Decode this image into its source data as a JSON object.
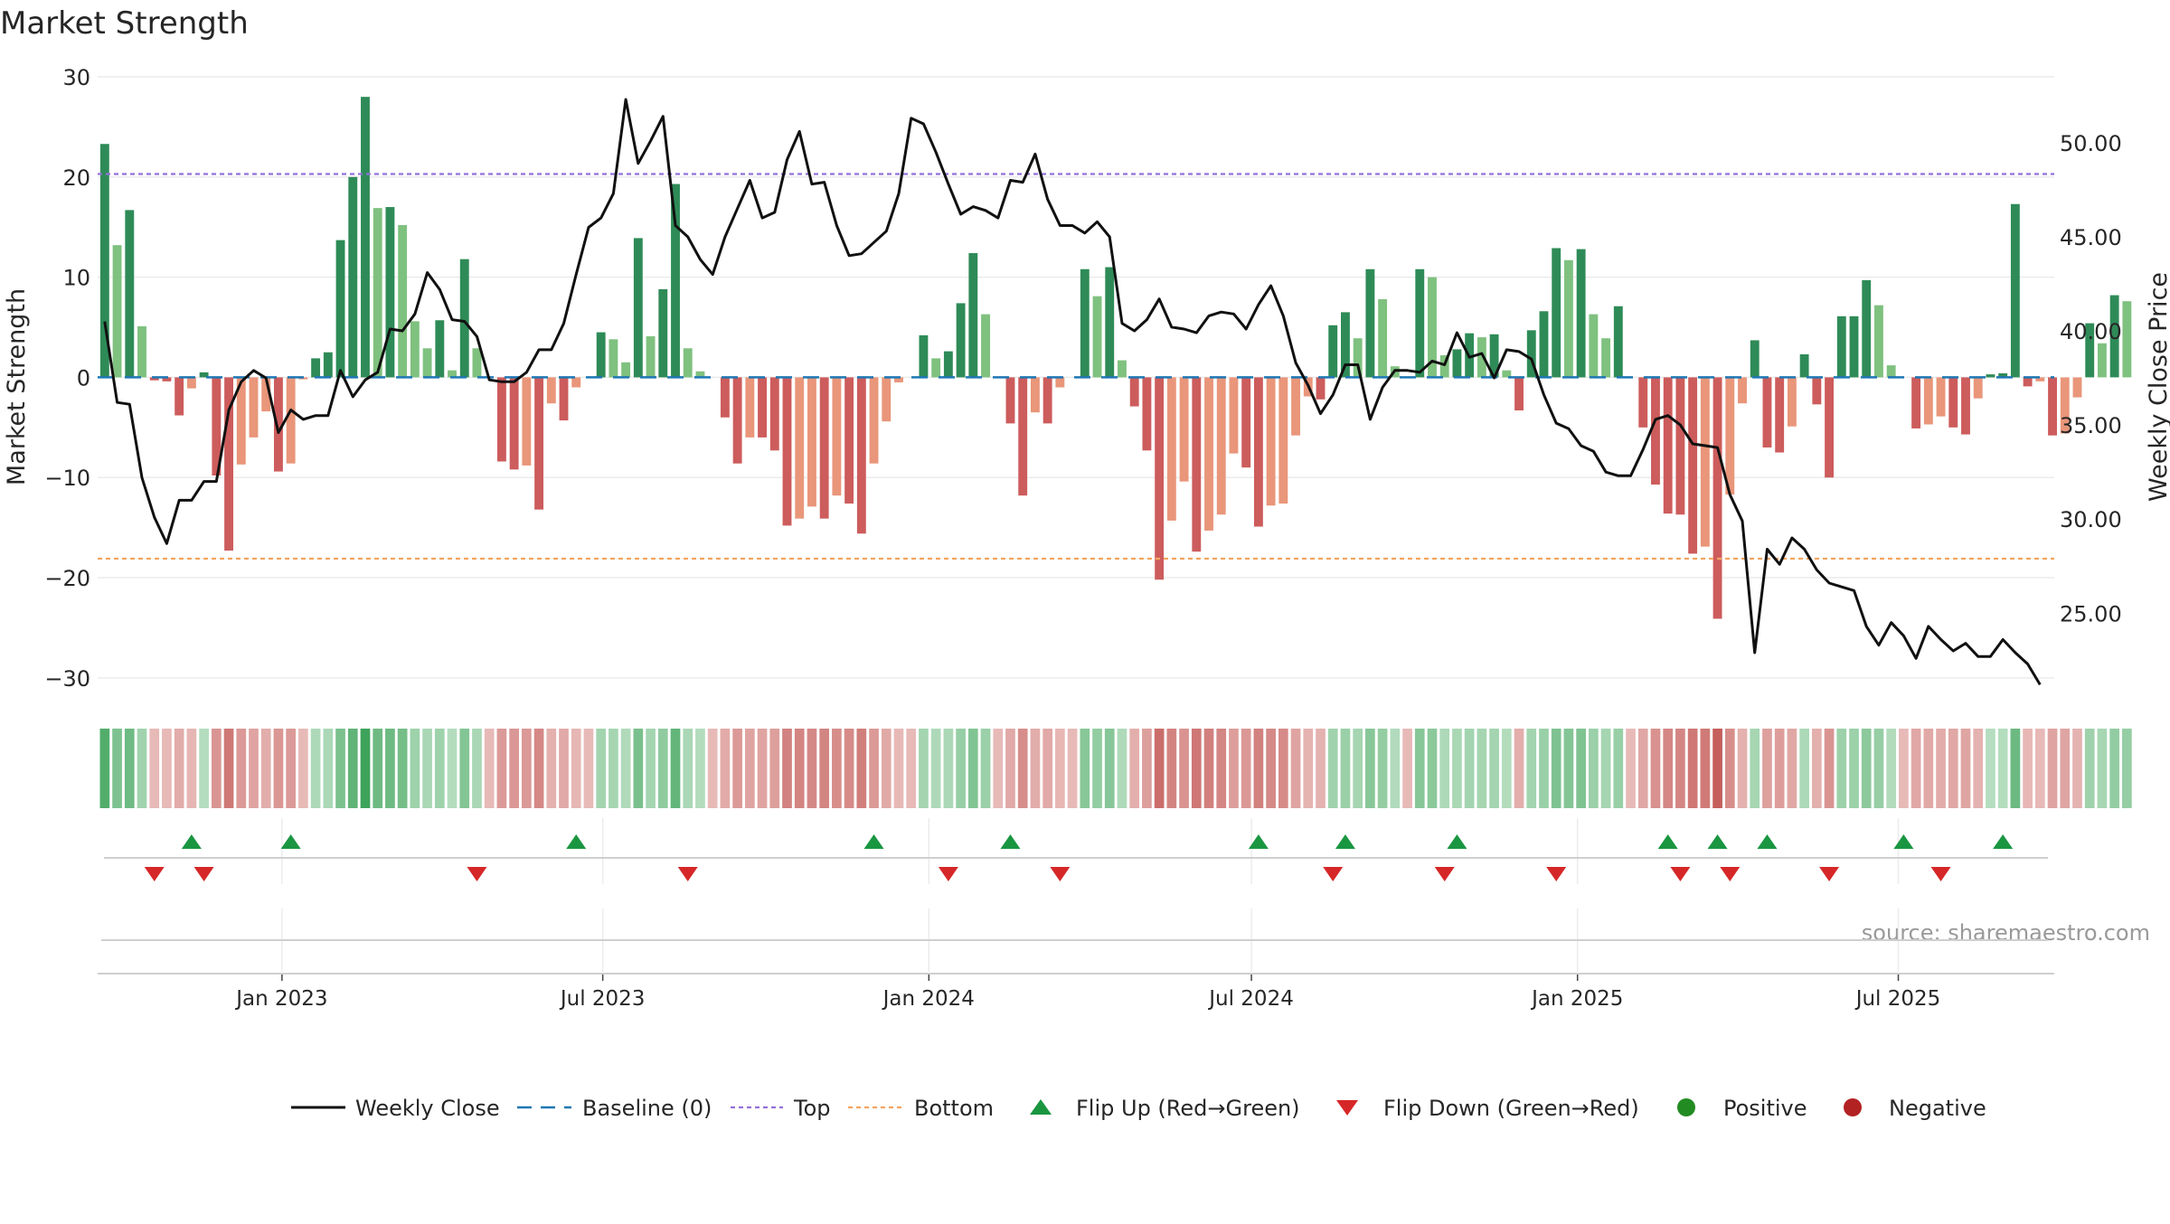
{
  "chart_data": {
    "type": "bar",
    "title": "Market Strength",
    "ylabel_left": "Market Strength",
    "ylabel_right": "Weekly Close Price",
    "ylim_left": [
      -32,
      30
    ],
    "ylim_right": [
      20.5,
      53.5
    ],
    "yticks_left": [
      30,
      20,
      10,
      0,
      -10,
      -20,
      -30
    ],
    "yticks_left_labels": [
      "30",
      "20",
      "10",
      "0",
      "−10",
      "−20",
      "−30"
    ],
    "yticks_right": [
      50,
      45,
      40,
      35,
      30,
      25
    ],
    "yticks_right_labels": [
      "50.00",
      "45.00",
      "40.00",
      "35.00",
      "30.00",
      "25.00"
    ],
    "x_start": "2022-09-23",
    "x_step_days": 7,
    "xlim": [
      "2022-09-19",
      "2025-09-27"
    ],
    "xticks": [
      "2023-01-01",
      "2023-07-01",
      "2024-01-01",
      "2024-07-01",
      "2025-01-01",
      "2025-07-01"
    ],
    "xtick_labels": [
      "Jan 2023",
      "Jul 2023",
      "Jan 2024",
      "Jul 2024",
      "Jan 2025",
      "Jul 2025"
    ],
    "top_line": 20.3,
    "bottom_line": -18.1,
    "baseline": 0,
    "strength": [
      23.3,
      13.2,
      16.7,
      5.1,
      -0.3,
      -0.4,
      -3.8,
      -1.1,
      0.5,
      -9.8,
      -17.3,
      -8.7,
      -6,
      -3.4,
      -9.4,
      -8.6,
      -0.2,
      1.9,
      2.5,
      13.7,
      20,
      28,
      16.9,
      17,
      15.2,
      5.6,
      2.9,
      5.7,
      0.7,
      11.8,
      2.9,
      -0.1,
      -8.4,
      -9.2,
      -8.8,
      -13.2,
      -2.6,
      -4.3,
      -1,
      -0.1,
      4.5,
      3.8,
      1.5,
      13.9,
      4.1,
      8.8,
      19.3,
      2.9,
      0.6,
      -0.1,
      -4,
      -8.6,
      -6,
      -6,
      -7.3,
      -14.8,
      -14.1,
      -12.9,
      -14.1,
      -11.8,
      -12.6,
      -15.6,
      -8.6,
      -4.4,
      -0.5,
      -0.1,
      4.2,
      1.9,
      2.6,
      7.4,
      12.4,
      6.3,
      -0.1,
      -4.6,
      -11.8,
      -3.5,
      -4.6,
      -1,
      -0.1,
      10.8,
      8.1,
      11,
      1.7,
      -2.9,
      -7.3,
      -20.2,
      -14.3,
      -10.4,
      -17.4,
      -15.3,
      -13.7,
      -7.6,
      -9,
      -14.9,
      -12.8,
      -12.6,
      -5.8,
      -1.9,
      -2.2,
      5.2,
      6.5,
      3.9,
      10.8,
      7.8,
      1.1,
      -0.1,
      10.8,
      10,
      2.2,
      2.8,
      4.4,
      4,
      4.3,
      0.7,
      -3.3,
      4.7,
      6.6,
      12.9,
      11.7,
      12.8,
      6.3,
      3.9,
      7.1,
      -0.1,
      -5,
      -10.7,
      -13.6,
      -13.7,
      -17.6,
      -16.9,
      -24.1,
      -11.7,
      -2.6,
      3.7,
      -7,
      -7.5,
      -4.9,
      2.3,
      -2.7,
      -10,
      6.1,
      6.1,
      9.7,
      7.2,
      1.2,
      -0.1,
      -5.1,
      -4.7,
      -3.9,
      -5,
      -5.7,
      -2.1,
      0.3,
      0.4,
      17.3,
      -0.9,
      -0.4,
      -5.8,
      -5.6,
      -2,
      5.4,
      3.4,
      8.2,
      7.6
    ],
    "weekly_close": [
      40.5,
      36.2,
      36.1,
      32.2,
      30.1,
      28.7,
      31,
      31,
      32,
      32,
      35.8,
      37.3,
      37.9,
      37.5,
      34.6,
      35.8,
      35.3,
      35.5,
      35.5,
      37.9,
      36.5,
      37.4,
      37.8,
      40.1,
      40,
      40.9,
      43.1,
      42.2,
      40.6,
      40.5,
      39.7,
      37.4,
      37.3,
      37.3,
      37.8,
      39,
      39,
      40.4,
      43,
      45.5,
      46,
      47.3,
      52.3,
      48.9,
      50.1,
      51.4,
      45.6,
      45,
      43.8,
      43,
      45,
      46.5,
      48,
      46,
      46.3,
      49.1,
      50.6,
      47.8,
      47.9,
      45.6,
      44,
      44.1,
      44.7,
      45.3,
      47.3,
      51.3,
      51,
      49.5,
      47.8,
      46.2,
      46.6,
      46.4,
      46,
      48,
      47.9,
      49.4,
      47,
      45.6,
      45.6,
      45.2,
      45.8,
      45,
      40.4,
      40,
      40.6,
      41.7,
      40.2,
      40.1,
      39.9,
      40.8,
      41,
      40.9,
      40.1,
      41.4,
      42.4,
      40.8,
      38.3,
      37.1,
      35.6,
      36.6,
      38.2,
      38.2,
      35.3,
      37,
      37.9,
      37.9,
      37.8,
      38.4,
      38.2,
      39.9,
      38.6,
      38.8,
      37.5,
      39,
      38.9,
      38.5,
      36.6,
      35.1,
      34.8,
      33.9,
      33.6,
      32.5,
      32.3,
      32.3,
      33.7,
      35.3,
      35.5,
      35,
      34,
      33.9,
      33.8,
      31.3,
      29.9,
      22.9,
      28.4,
      27.6,
      29,
      28.4,
      27.3,
      26.6,
      26.4,
      26.2,
      24.3,
      23.3,
      24.5,
      23.8,
      22.6,
      24.3,
      23.6,
      23,
      23.4,
      22.7,
      22.7,
      23.6,
      22.9,
      22.3,
      21.2
    ],
    "flip_up_weeks": [
      7,
      15,
      38,
      62,
      73,
      93,
      100,
      109,
      126,
      130,
      134,
      145,
      153
    ],
    "flip_down_weeks": [
      4,
      8,
      30,
      47,
      68,
      77,
      99,
      108,
      117,
      127,
      131,
      139,
      148
    ],
    "legend": [
      "Weekly Close",
      "Baseline (0)",
      "Top",
      "Bottom",
      "Flip Up (Red→Green)",
      "Flip Down (Green→Red)",
      "Positive",
      "Negative"
    ],
    "legend_position": "bottom",
    "annotation": "source: sharemaestro.com",
    "colors": {
      "pos_strong": "#2e8b57",
      "pos_weak": "#7fc17f",
      "neg_strong": "#cd5c5c",
      "neg_weak": "#e9967a",
      "close_line": "#111111",
      "baseline": "#1f77b4",
      "top": "#9370db",
      "bottom": "#f4a460",
      "flip_up": "#1a9641",
      "flip_down": "#d62728",
      "positive_dot": "#228b22",
      "negative_dot": "#b22222"
    }
  }
}
